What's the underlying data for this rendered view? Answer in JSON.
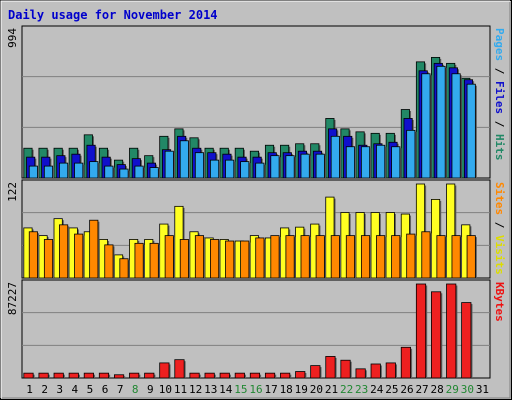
{
  "chart_data": {
    "type": "bar",
    "title": "Daily usage for November 2014",
    "categories": [
      "1",
      "2",
      "3",
      "4",
      "5",
      "6",
      "7",
      "8",
      "9",
      "10",
      "11",
      "12",
      "13",
      "14",
      "15",
      "16",
      "17",
      "18",
      "19",
      "20",
      "21",
      "22",
      "23",
      "24",
      "25",
      "26",
      "27",
      "28",
      "29",
      "30",
      "31"
    ],
    "weekend_days": [
      "8",
      "15",
      "16",
      "22",
      "23",
      "29",
      "30"
    ],
    "panels": [
      {
        "id": "hits",
        "ymax_label": "994",
        "ymax": 994,
        "label_parts": [
          {
            "text": "Pages",
            "color": "#33aaee"
          },
          {
            "text": " / ",
            "color": "#000000"
          },
          {
            "text": "Files",
            "color": "#1010cc"
          },
          {
            "text": " / ",
            "color": "#000000"
          },
          {
            "text": "Hits",
            "color": "#228866"
          }
        ],
        "series": [
          {
            "name": "Hits",
            "color": "#228866",
            "values": [
              200,
              200,
              200,
              200,
              290,
              200,
              120,
              200,
              150,
              280,
              330,
              270,
              200,
              200,
              200,
              180,
              220,
              220,
              230,
              230,
              400,
              330,
              310,
              300,
              300,
              460,
              780,
              810,
              770,
              670,
              null
            ]
          },
          {
            "name": "Files",
            "color": "#1010cc",
            "values": [
              140,
              140,
              150,
              160,
              220,
              140,
              90,
              130,
              100,
              190,
              280,
              200,
              170,
              160,
              140,
              140,
              170,
              170,
              180,
              180,
              330,
              280,
              220,
              230,
              240,
              400,
              720,
              770,
              740,
              660,
              null
            ]
          },
          {
            "name": "Pages",
            "color": "#33aaee",
            "values": [
              80,
              80,
              100,
              100,
              110,
              80,
              60,
              80,
              70,
              180,
              250,
              170,
              120,
              120,
              110,
              100,
              150,
              150,
              160,
              160,
              280,
              210,
              210,
              220,
              210,
              320,
              700,
              750,
              700,
              630,
              null
            ]
          }
        ]
      },
      {
        "id": "visits",
        "ymax_label": "122",
        "ymax": 122,
        "label_parts": [
          {
            "text": "Sites",
            "color": "#ff8800"
          },
          {
            "text": " / ",
            "color": "#000000"
          },
          {
            "text": "Visits",
            "color": "#dddd00"
          }
        ],
        "series": [
          {
            "name": "Visits",
            "color": "#ffff22",
            "values": [
              65,
              55,
              77,
              65,
              60,
              50,
              30,
              50,
              50,
              70,
              93,
              60,
              52,
              50,
              48,
              55,
              52,
              65,
              66,
              70,
              105,
              85,
              85,
              85,
              85,
              83,
              122,
              102,
              122,
              69,
              null
            ]
          },
          {
            "name": "Sites",
            "color": "#ff8800",
            "values": [
              60,
              50,
              69,
              57,
              75,
              43,
              25,
              45,
              45,
              55,
              50,
              55,
              50,
              48,
              48,
              52,
              55,
              55,
              55,
              55,
              55,
              55,
              55,
              55,
              55,
              57,
              60,
              55,
              55,
              55,
              null
            ]
          }
        ]
      },
      {
        "id": "kbytes",
        "ymax_label": "87227",
        "ymax": 87227,
        "label_parts": [
          {
            "text": "KBytes",
            "color": "#ee1111"
          }
        ],
        "series": [
          {
            "name": "KBytes",
            "color": "#ee2020",
            "values": [
              4500,
              4500,
              4500,
              4500,
              4500,
              4500,
              3000,
              4500,
              4500,
              14000,
              17000,
              4500,
              4500,
              4500,
              4500,
              4500,
              4500,
              4500,
              6000,
              11500,
              20000,
              16500,
              8500,
              13000,
              14000,
              28500,
              87227,
              80000,
              87227,
              70000,
              null
            ]
          }
        ]
      }
    ]
  }
}
